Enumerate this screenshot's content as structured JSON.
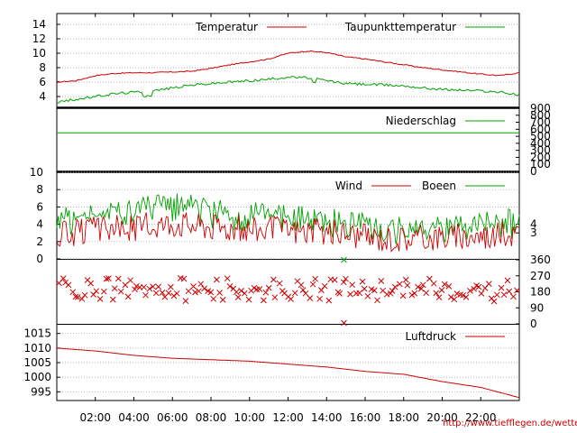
{
  "source_link": "http://www.tiefflegen.de/wetter/",
  "colors": {
    "red": "#cc0000",
    "green": "#00a000",
    "grid": "#999999",
    "axis": "#000000"
  },
  "time_labels": [
    "02:00",
    "04:00",
    "06:00",
    "08:00",
    "10:00",
    "12:00",
    "14:00",
    "16:00",
    "18:00",
    "20:00",
    "22:00"
  ],
  "chart_data": [
    {
      "type": "line",
      "panel": "temperature",
      "x_hours": [
        0,
        1,
        2,
        3,
        4,
        5,
        6,
        7,
        8,
        9,
        10,
        11,
        12,
        13,
        14,
        15,
        16,
        17,
        18,
        19,
        20,
        21,
        22,
        23,
        24
      ],
      "ylim": [
        2.5,
        15.5
      ],
      "y_ticks": [
        4,
        6,
        8,
        10,
        12,
        14
      ],
      "series": [
        {
          "name": "Temperatur",
          "color": "#cc0000",
          "values": [
            6.0,
            6.2,
            6.9,
            7.2,
            7.3,
            7.3,
            7.4,
            7.5,
            7.9,
            8.4,
            8.8,
            9.2,
            10.0,
            10.3,
            10.1,
            9.5,
            9.2,
            8.8,
            8.4,
            8.0,
            7.7,
            7.4,
            7.1,
            6.9,
            7.3
          ]
        },
        {
          "name": "Taupunkttemperatur",
          "color": "#00a000",
          "values": [
            3.2,
            3.6,
            4.0,
            4.4,
            4.6,
            4.8,
            5.2,
            5.6,
            5.8,
            6.0,
            6.2,
            6.4,
            6.7,
            6.6,
            6.2,
            5.8,
            5.7,
            5.6,
            5.5,
            5.2,
            5.0,
            4.9,
            4.8,
            4.6,
            4.2
          ]
        }
      ]
    },
    {
      "type": "line",
      "panel": "precipitation",
      "ylim": [
        0,
        900
      ],
      "y_ticks_right": [
        0,
        100,
        200,
        300,
        400,
        500,
        600,
        700,
        800,
        900
      ],
      "series": [
        {
          "name": "Niederschlag",
          "color": "#00a000",
          "values": [
            550,
            550
          ]
        }
      ]
    },
    {
      "type": "line",
      "panel": "wind",
      "ylim": [
        0,
        10
      ],
      "y_ticks": [
        0,
        2,
        4,
        6,
        8,
        10
      ],
      "y_ticks_right": [
        3,
        4
      ],
      "x_hours": [
        0,
        1,
        2,
        3,
        4,
        5,
        6,
        7,
        8,
        9,
        10,
        11,
        12,
        13,
        14,
        15,
        16,
        17,
        18,
        19,
        20,
        21,
        22,
        23,
        24
      ],
      "series": [
        {
          "name": "Wind",
          "color": "#cc0000",
          "values": [
            2.8,
            3.0,
            3.3,
            3.5,
            3.6,
            3.9,
            4.2,
            4.0,
            3.8,
            3.6,
            3.5,
            3.4,
            3.3,
            3.2,
            3.1,
            3.0,
            2.6,
            2.4,
            2.4,
            2.5,
            2.6,
            2.6,
            2.7,
            2.8,
            3.0
          ]
        },
        {
          "name": "Boeen",
          "color": "#00a000",
          "values": [
            4.2,
            4.5,
            4.8,
            5.2,
            5.4,
            5.8,
            6.0,
            5.8,
            5.3,
            5.0,
            4.9,
            4.8,
            4.6,
            4.4,
            4.2,
            4.0,
            3.5,
            3.2,
            3.2,
            3.3,
            3.5,
            3.5,
            3.6,
            3.8,
            4.2
          ]
        }
      ]
    },
    {
      "type": "scatter",
      "panel": "wind_direction",
      "ylim": [
        0,
        360
      ],
      "y_ticks_right": [
        0,
        90,
        180,
        270,
        360
      ],
      "series": [
        {
          "color": "#cc0000",
          "typical_degrees": 180,
          "spread_degrees": 60
        }
      ]
    },
    {
      "type": "line",
      "panel": "pressure",
      "ylim": [
        992,
        1018
      ],
      "y_ticks": [
        995,
        1000,
        1005,
        1010,
        1015
      ],
      "x_hours": [
        0,
        2,
        4,
        6,
        8,
        10,
        12,
        14,
        16,
        18,
        20,
        22,
        24
      ],
      "series": [
        {
          "name": "Luftdruck",
          "color": "#cc0000",
          "values": [
            1010,
            1009,
            1007.5,
            1006.5,
            1006,
            1005.5,
            1004.5,
            1003.5,
            1002,
            1001,
            998.5,
            996.5,
            993
          ]
        }
      ]
    }
  ]
}
